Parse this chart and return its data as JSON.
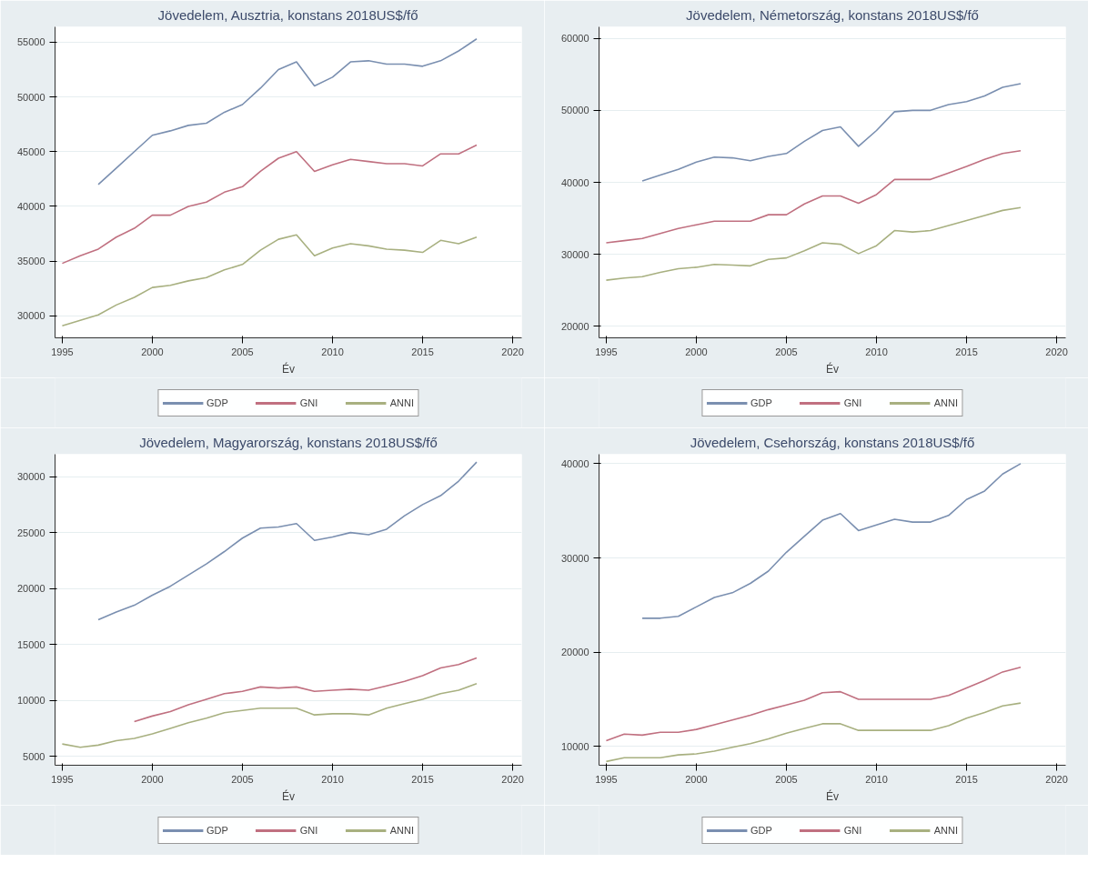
{
  "chart_data": [
    {
      "type": "line",
      "title": "Jövedelem, Ausztria, konstans 2018US$/fő",
      "xlabel": "Év",
      "x": [
        1995,
        1996,
        1997,
        1998,
        1999,
        2000,
        2001,
        2002,
        2003,
        2004,
        2005,
        2006,
        2007,
        2008,
        2009,
        2010,
        2011,
        2012,
        2013,
        2014,
        2015,
        2016,
        2017,
        2018
      ],
      "xlim": [
        1994.6,
        2020.5
      ],
      "xticks": [
        1995,
        2000,
        2005,
        2010,
        2015,
        2020
      ],
      "ylim": [
        28000,
        56400
      ],
      "yticks": [
        30000,
        35000,
        40000,
        45000,
        50000,
        55000
      ],
      "grid": "y",
      "legend": "bottom",
      "series": [
        {
          "name": "GDP",
          "color": "#7a8fb0",
          "values": [
            null,
            null,
            42000,
            43500,
            45000,
            46500,
            46900,
            47400,
            47600,
            48600,
            49300,
            50800,
            52500,
            53200,
            51000,
            51800,
            53200,
            53300,
            53000,
            53000,
            52800,
            53300,
            54200,
            55300
          ]
        },
        {
          "name": "GNI",
          "color": "#c07080",
          "values": [
            34800,
            35500,
            36100,
            37200,
            38000,
            39200,
            39200,
            40000,
            40400,
            41300,
            41800,
            43200,
            44400,
            45000,
            43200,
            43800,
            44300,
            44100,
            43900,
            43900,
            43700,
            44800,
            44800,
            45600
          ]
        },
        {
          "name": "ANNI",
          "color": "#a8b080",
          "values": [
            29100,
            29600,
            30100,
            31000,
            31700,
            32600,
            32800,
            33200,
            33500,
            34200,
            34700,
            36000,
            37000,
            37400,
            35500,
            36200,
            36600,
            36400,
            36100,
            36000,
            35800,
            36900,
            36600,
            37200
          ]
        }
      ]
    },
    {
      "type": "line",
      "title": "Jövedelem, Németország, konstans 2018US$/fő",
      "xlabel": "Év",
      "x": [
        1995,
        1996,
        1997,
        1998,
        1999,
        2000,
        2001,
        2002,
        2003,
        2004,
        2005,
        2006,
        2007,
        2008,
        2009,
        2010,
        2011,
        2012,
        2013,
        2014,
        2015,
        2016,
        2017,
        2018
      ],
      "xlim": [
        1994.6,
        2020.5
      ],
      "xticks": [
        1995,
        2000,
        2005,
        2010,
        2015,
        2020
      ],
      "ylim": [
        18400,
        61600
      ],
      "yticks": [
        20000,
        30000,
        40000,
        50000,
        60000
      ],
      "grid": "y",
      "legend": "bottom",
      "series": [
        {
          "name": "GDP",
          "color": "#7a8fb0",
          "values": [
            null,
            null,
            40200,
            41000,
            41800,
            42800,
            43500,
            43400,
            43000,
            43600,
            44000,
            45700,
            47200,
            47700,
            45000,
            47200,
            49800,
            50000,
            50000,
            50800,
            51200,
            52000,
            53200,
            53700
          ]
        },
        {
          "name": "GNI",
          "color": "#c07080",
          "values": [
            31600,
            31900,
            32200,
            32900,
            33600,
            34100,
            34600,
            34600,
            34600,
            35500,
            35500,
            37000,
            38100,
            38100,
            37100,
            38300,
            40400,
            40400,
            40400,
            41300,
            42200,
            43200,
            44000,
            44400
          ]
        },
        {
          "name": "ANNI",
          "color": "#a8b080",
          "values": [
            26400,
            26700,
            26900,
            27500,
            28000,
            28200,
            28600,
            28500,
            28400,
            29300,
            29500,
            30500,
            31600,
            31400,
            30100,
            31200,
            33300,
            33100,
            33300,
            34000,
            34700,
            35400,
            36100,
            36500
          ]
        }
      ]
    },
    {
      "type": "line",
      "title": "Jövedelem, Magyarország, konstans 2018US$/fő",
      "xlabel": "Év",
      "x": [
        1995,
        1996,
        1997,
        1998,
        1999,
        2000,
        2001,
        2002,
        2003,
        2004,
        2005,
        2006,
        2007,
        2008,
        2009,
        2010,
        2011,
        2012,
        2013,
        2014,
        2015,
        2016,
        2017,
        2018
      ],
      "xlim": [
        1994.6,
        2020.5
      ],
      "xticks": [
        1995,
        2000,
        2005,
        2010,
        2015,
        2020
      ],
      "ylim": [
        4200,
        32000
      ],
      "yticks": [
        5000,
        10000,
        15000,
        20000,
        25000,
        30000
      ],
      "grid": "y",
      "legend": "bottom",
      "series": [
        {
          "name": "GDP",
          "color": "#7a8fb0",
          "values": [
            null,
            null,
            17200,
            17900,
            18500,
            19400,
            20200,
            21200,
            22200,
            23300,
            24500,
            25400,
            25500,
            25800,
            24300,
            24600,
            25000,
            24800,
            25300,
            26500,
            27500,
            28300,
            29600,
            31300
          ]
        },
        {
          "name": "GNI",
          "color": "#c07080",
          "values": [
            null,
            null,
            null,
            null,
            8100,
            8600,
            9000,
            9600,
            10100,
            10600,
            10800,
            11200,
            11100,
            11200,
            10800,
            10900,
            11000,
            10900,
            11300,
            11700,
            12200,
            12900,
            13200,
            13800
          ]
        },
        {
          "name": "ANNI",
          "color": "#a8b080",
          "values": [
            6100,
            5800,
            6000,
            6400,
            6600,
            7000,
            7500,
            8000,
            8400,
            8900,
            9100,
            9300,
            9300,
            9300,
            8700,
            8800,
            8800,
            8700,
            9300,
            9700,
            10100,
            10600,
            10900,
            11500
          ]
        }
      ]
    },
    {
      "type": "line",
      "title": "Jövedelem, Csehország, konstans 2018US$/fő",
      "xlabel": "Év",
      "x": [
        1995,
        1996,
        1997,
        1998,
        1999,
        2000,
        2001,
        2002,
        2003,
        2004,
        2005,
        2006,
        2007,
        2008,
        2009,
        2010,
        2011,
        2012,
        2013,
        2014,
        2015,
        2016,
        2017,
        2018
      ],
      "xlim": [
        1994.6,
        2020.5
      ],
      "xticks": [
        1995,
        2000,
        2005,
        2010,
        2015,
        2020
      ],
      "ylim": [
        8000,
        41000
      ],
      "yticks": [
        10000,
        20000,
        30000,
        40000
      ],
      "grid": "y",
      "legend": "bottom",
      "series": [
        {
          "name": "GDP",
          "color": "#7a8fb0",
          "values": [
            null,
            null,
            23600,
            23600,
            23800,
            24800,
            25800,
            26300,
            27300,
            28600,
            30600,
            32300,
            34000,
            34700,
            32900,
            33500,
            34100,
            33800,
            33800,
            34500,
            36200,
            37100,
            38900,
            40000
          ]
        },
        {
          "name": "GNI",
          "color": "#c07080",
          "values": [
            10600,
            11300,
            11200,
            11500,
            11500,
            11800,
            12300,
            12800,
            13300,
            13900,
            14400,
            14900,
            15700,
            15800,
            15000,
            15000,
            15000,
            15000,
            15000,
            15400,
            16200,
            17000,
            17900,
            18400
          ]
        },
        {
          "name": "ANNI",
          "color": "#a8b080",
          "values": [
            8400,
            8800,
            8800,
            8800,
            9100,
            9200,
            9500,
            9900,
            10300,
            10800,
            11400,
            11900,
            12400,
            12400,
            11700,
            11700,
            11700,
            11700,
            11700,
            12200,
            13000,
            13600,
            14300,
            14600
          ]
        }
      ]
    }
  ]
}
